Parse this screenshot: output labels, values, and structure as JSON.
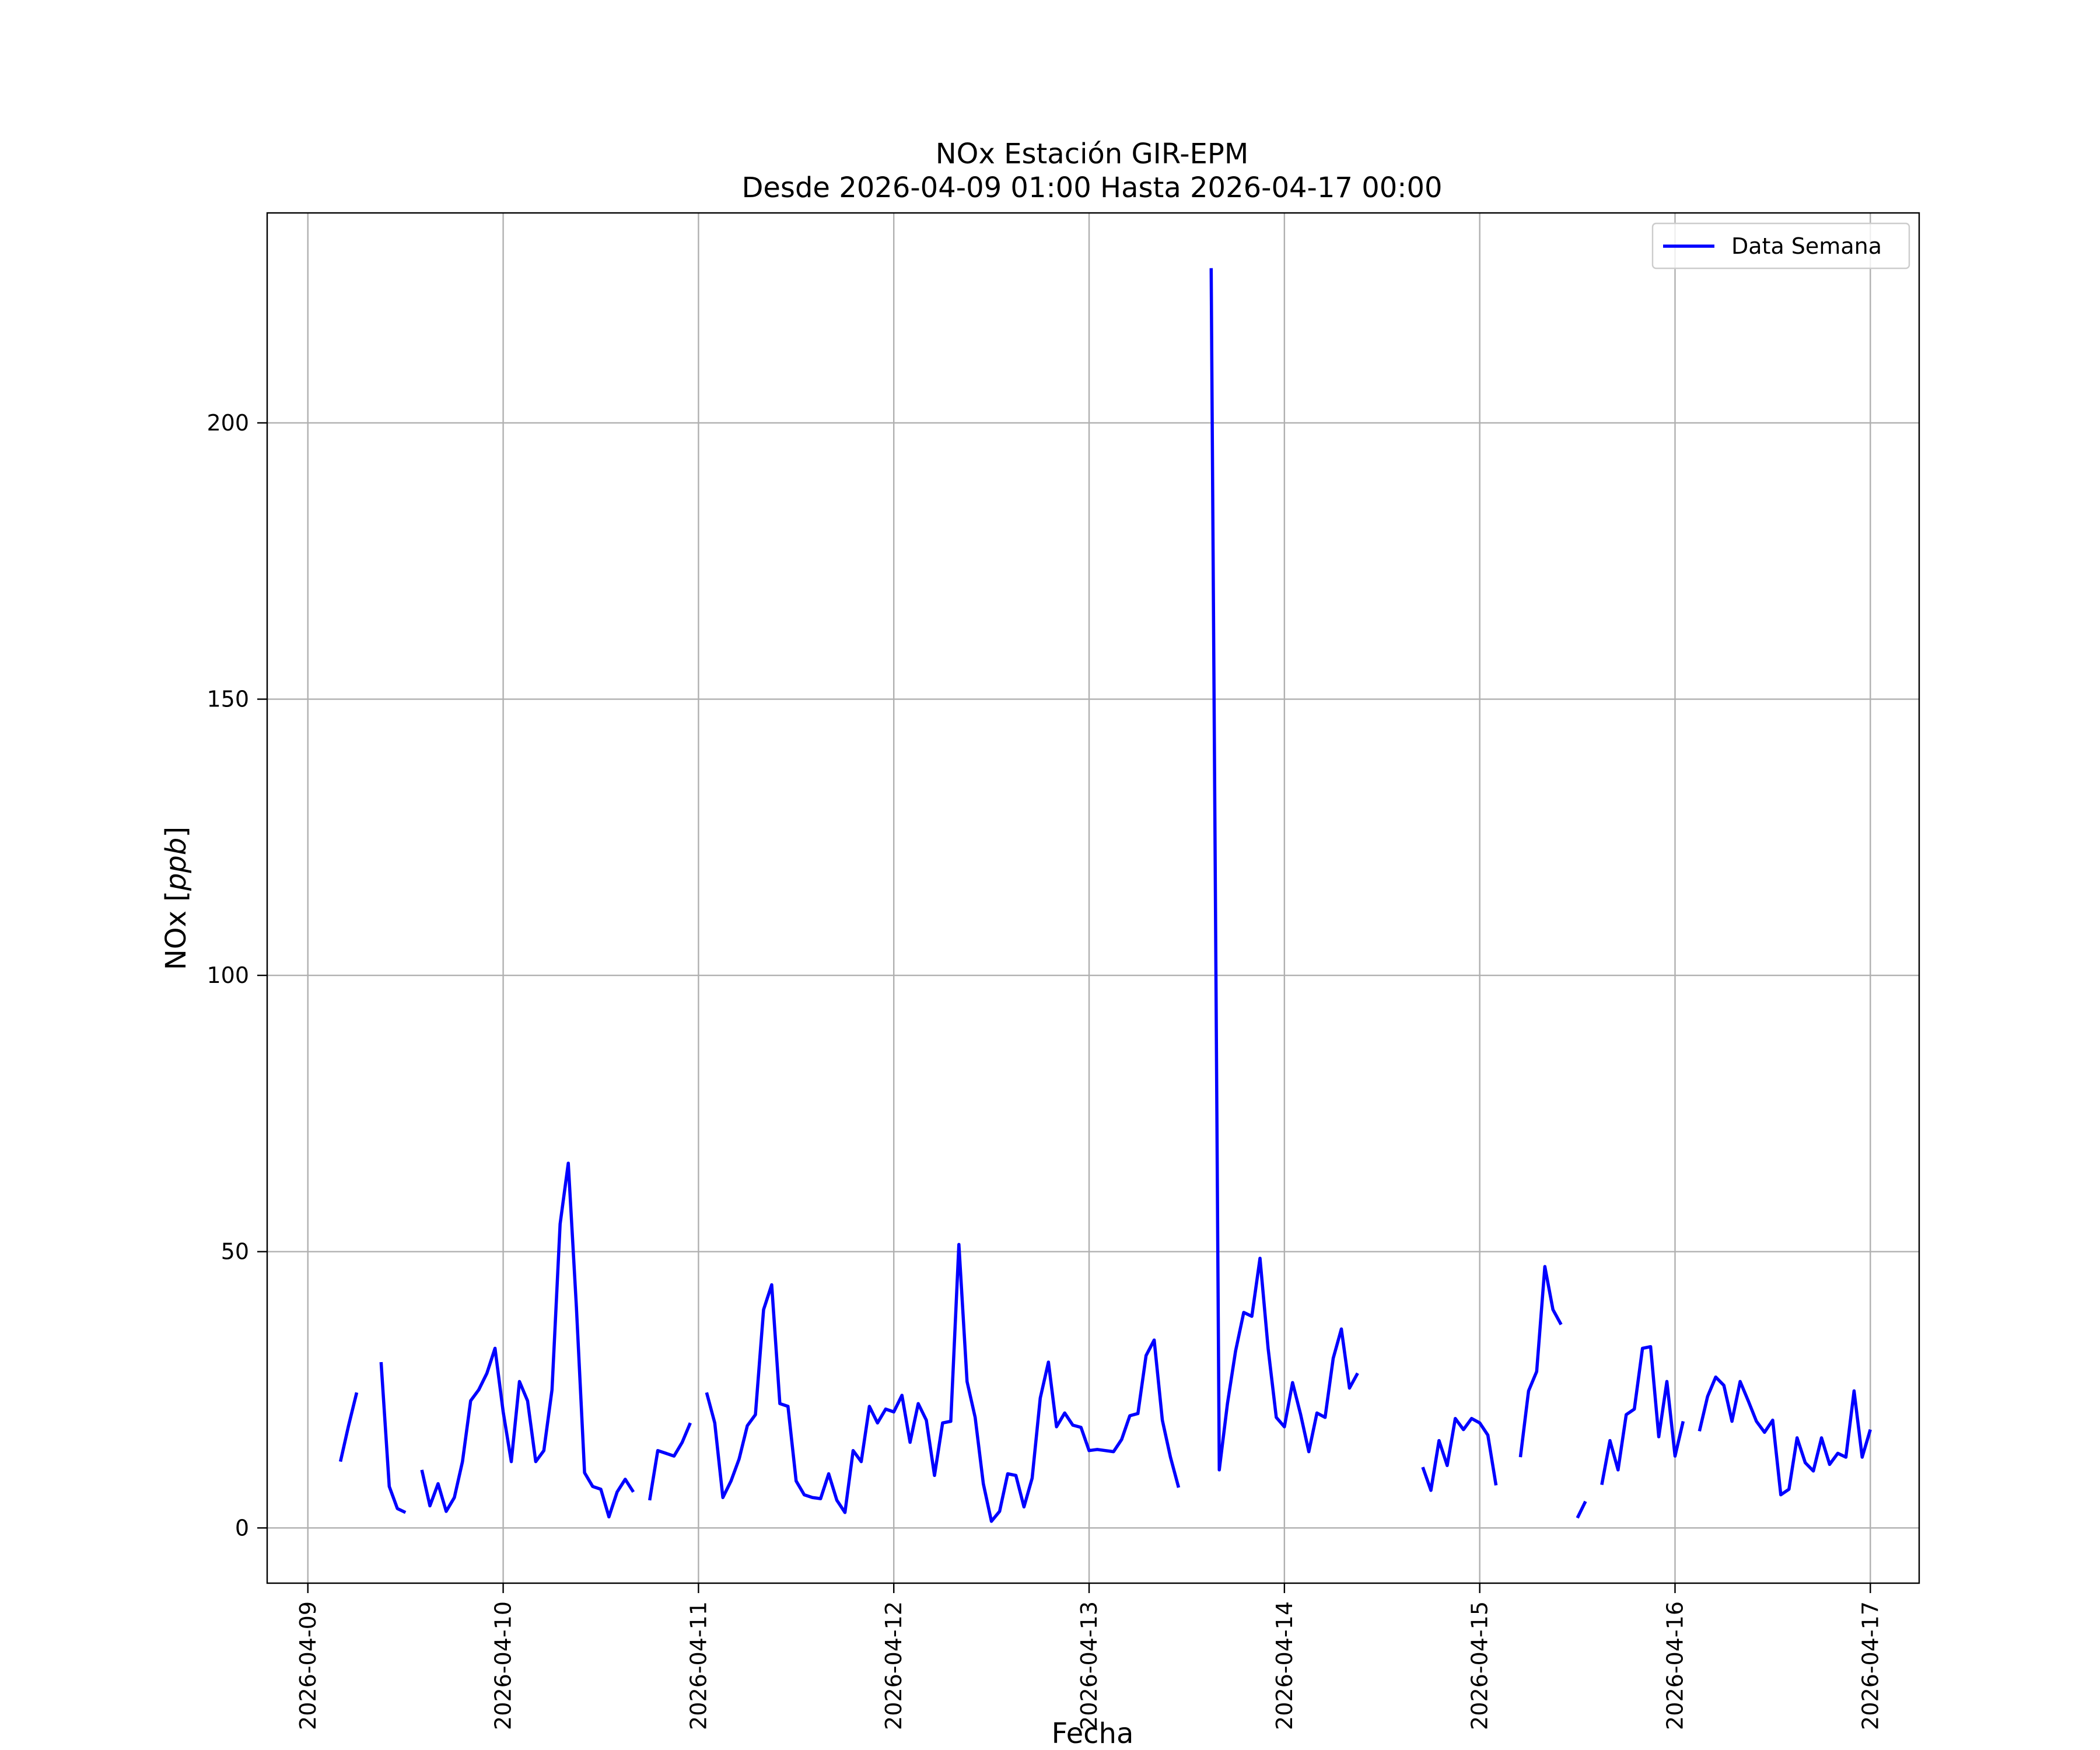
{
  "chart_data": {
    "type": "line",
    "title": "NOx Estación GIR-EPM",
    "subtitle": "Desde 2026-04-09 01:00 Hasta 2026-04-17 00:00",
    "xlabel": "Fecha",
    "ylabel": "NOx [ppb]",
    "ylabel_parts": {
      "name": "NOx",
      "unit": "ppb"
    },
    "xlim": [
      "2026-04-08 19:00",
      "2026-04-17 06:00"
    ],
    "ylim": [
      -10,
      238
    ],
    "x_ticks": [
      "2026-04-09",
      "2026-04-10",
      "2026-04-11",
      "2026-04-12",
      "2026-04-13",
      "2026-04-14",
      "2026-04-15",
      "2026-04-16",
      "2026-04-17"
    ],
    "y_ticks": [
      0,
      50,
      100,
      150,
      200
    ],
    "y_tick_labels": [
      "0",
      "50",
      "100",
      "150",
      "200"
    ],
    "grid": true,
    "legend": {
      "position": "top-right",
      "entries": [
        "Data Semana"
      ]
    },
    "colors": {
      "series": "#0000ff",
      "grid": "#b0b0b0",
      "frame": "#000000"
    },
    "series": [
      {
        "name": "Data Semana",
        "segments": [
          [
            [
              "2026-04-09 04:00",
              12
            ],
            [
              "2026-04-09 05:00",
              18.5
            ],
            [
              "2026-04-09 06:00",
              24.5
            ]
          ],
          [
            [
              "2026-04-09 09:00",
              30
            ],
            [
              "2026-04-09 10:00",
              7.5
            ],
            [
              "2026-04-09 11:00",
              3.5
            ],
            [
              "2026-04-09 12:00",
              2.8
            ]
          ],
          [
            [
              "2026-04-09 14:00",
              10.5
            ],
            [
              "2026-04-09 15:00",
              4
            ],
            [
              "2026-04-09 16:00",
              8
            ],
            [
              "2026-04-09 17:00",
              3
            ],
            [
              "2026-04-09 18:00",
              5.5
            ],
            [
              "2026-04-09 19:00",
              12
            ],
            [
              "2026-04-09 20:00",
              23
            ],
            [
              "2026-04-09 21:00",
              25
            ],
            [
              "2026-04-09 22:00",
              28
            ],
            [
              "2026-04-09 23:00",
              32.5
            ],
            [
              "2026-04-10 00:00",
              21
            ],
            [
              "2026-04-10 01:00",
              12
            ],
            [
              "2026-04-10 02:00",
              26.5
            ],
            [
              "2026-04-10 03:00",
              23
            ],
            [
              "2026-04-10 04:00",
              12
            ],
            [
              "2026-04-10 05:00",
              14
            ],
            [
              "2026-04-10 06:00",
              25
            ],
            [
              "2026-04-10 07:00",
              55
            ],
            [
              "2026-04-10 08:00",
              66
            ],
            [
              "2026-04-10 09:00",
              40
            ],
            [
              "2026-04-10 10:00",
              10
            ],
            [
              "2026-04-10 11:00",
              7.5
            ],
            [
              "2026-04-10 12:00",
              7
            ],
            [
              "2026-04-10 13:00",
              2
            ],
            [
              "2026-04-10 14:00",
              6.5
            ],
            [
              "2026-04-10 15:00",
              8.8
            ],
            [
              "2026-04-10 16:00",
              6.5
            ]
          ],
          [
            [
              "2026-04-10 18:00",
              5
            ],
            [
              "2026-04-10 19:00",
              14
            ],
            [
              "2026-04-10 20:00",
              13.5
            ],
            [
              "2026-04-10 21:00",
              13
            ],
            [
              "2026-04-10 22:00",
              15.5
            ],
            [
              "2026-04-10 23:00",
              19
            ]
          ],
          [
            [
              "2026-04-11 01:00",
              24.5
            ],
            [
              "2026-04-11 02:00",
              19
            ],
            [
              "2026-04-11 03:00",
              5.5
            ],
            [
              "2026-04-11 04:00",
              8.5
            ],
            [
              "2026-04-11 05:00",
              12.5
            ],
            [
              "2026-04-11 06:00",
              18.5
            ],
            [
              "2026-04-11 07:00",
              20.5
            ],
            [
              "2026-04-11 08:00",
              39.5
            ],
            [
              "2026-04-11 09:00",
              44
            ],
            [
              "2026-04-11 10:00",
              22.5
            ],
            [
              "2026-04-11 11:00",
              22
            ],
            [
              "2026-04-11 12:00",
              8.5
            ],
            [
              "2026-04-11 13:00",
              6
            ],
            [
              "2026-04-11 14:00",
              5.5
            ],
            [
              "2026-04-11 15:00",
              5.3
            ],
            [
              "2026-04-11 16:00",
              9.8
            ],
            [
              "2026-04-11 17:00",
              5
            ],
            [
              "2026-04-11 18:00",
              2.8
            ],
            [
              "2026-04-11 19:00",
              14
            ],
            [
              "2026-04-11 20:00",
              12
            ],
            [
              "2026-04-11 21:00",
              22
            ],
            [
              "2026-04-11 22:00",
              19
            ],
            [
              "2026-04-11 23:00",
              21.5
            ],
            [
              "2026-04-12 00:00",
              21
            ],
            [
              "2026-04-12 01:00",
              24
            ],
            [
              "2026-04-12 02:00",
              15.5
            ],
            [
              "2026-04-12 03:00",
              22.5
            ],
            [
              "2026-04-12 04:00",
              19.5
            ],
            [
              "2026-04-12 05:00",
              9.5
            ],
            [
              "2026-04-12 06:00",
              19
            ],
            [
              "2026-04-12 07:00",
              19.3
            ],
            [
              "2026-04-12 08:00",
              51.3
            ],
            [
              "2026-04-12 09:00",
              26.5
            ],
            [
              "2026-04-12 10:00",
              20
            ],
            [
              "2026-04-12 11:00",
              8
            ],
            [
              "2026-04-12 12:00",
              1.2
            ],
            [
              "2026-04-12 13:00",
              3
            ],
            [
              "2026-04-12 14:00",
              9.8
            ],
            [
              "2026-04-12 15:00",
              9.5
            ],
            [
              "2026-04-12 16:00",
              3.8
            ],
            [
              "2026-04-12 17:00",
              9
            ],
            [
              "2026-04-12 18:00",
              23.5
            ],
            [
              "2026-04-12 19:00",
              30
            ],
            [
              "2026-04-12 20:00",
              18.3
            ],
            [
              "2026-04-12 21:00",
              20.8
            ],
            [
              "2026-04-12 22:00",
              18.6
            ],
            [
              "2026-04-12 23:00",
              18.2
            ],
            [
              "2026-04-13 00:00",
              14
            ],
            [
              "2026-04-13 01:00",
              14.2
            ],
            [
              "2026-04-13 02:00",
              14
            ],
            [
              "2026-04-13 03:00",
              13.8
            ],
            [
              "2026-04-13 04:00",
              16
            ],
            [
              "2026-04-13 05:00",
              20.3
            ],
            [
              "2026-04-13 06:00",
              20.7
            ],
            [
              "2026-04-13 07:00",
              31.2
            ],
            [
              "2026-04-13 08:00",
              34
            ],
            [
              "2026-04-13 09:00",
              19.5
            ],
            [
              "2026-04-13 10:00",
              12.8
            ],
            [
              "2026-04-13 11:00",
              7.3
            ]
          ],
          [
            [
              "2026-04-13 15:00",
              228
            ],
            [
              "2026-04-13 16:00",
              10.5
            ],
            [
              "2026-04-13 17:00",
              22.5
            ],
            [
              "2026-04-13 18:00",
              32
            ],
            [
              "2026-04-13 19:00",
              39
            ],
            [
              "2026-04-13 20:00",
              38.3
            ],
            [
              "2026-04-13 21:00",
              48.8
            ],
            [
              "2026-04-13 22:00",
              32.5
            ],
            [
              "2026-04-13 23:00",
              20
            ],
            [
              "2026-04-14 00:00",
              18.3
            ],
            [
              "2026-04-14 01:00",
              26.3
            ],
            [
              "2026-04-14 02:00",
              20.5
            ],
            [
              "2026-04-14 03:00",
              13.8
            ],
            [
              "2026-04-14 04:00",
              20.8
            ],
            [
              "2026-04-14 05:00",
              20
            ],
            [
              "2026-04-14 06:00",
              30.7
            ],
            [
              "2026-04-14 07:00",
              36
            ],
            [
              "2026-04-14 08:00",
              25.3
            ],
            [
              "2026-04-14 09:00",
              28
            ]
          ],
          [
            [
              "2026-04-14 17:00",
              11
            ],
            [
              "2026-04-14 18:00",
              6.8
            ],
            [
              "2026-04-14 19:00",
              15.8
            ],
            [
              "2026-04-14 20:00",
              11.3
            ],
            [
              "2026-04-14 21:00",
              19.8
            ],
            [
              "2026-04-14 22:00",
              17.8
            ],
            [
              "2026-04-14 23:00",
              19.8
            ],
            [
              "2026-04-15 00:00",
              19
            ],
            [
              "2026-04-15 01:00",
              16.8
            ],
            [
              "2026-04-15 02:00",
              7.7
            ]
          ],
          [
            [
              "2026-04-15 05:00",
              12.8
            ],
            [
              "2026-04-15 06:00",
              24.8
            ],
            [
              "2026-04-15 07:00",
              28.3
            ],
            [
              "2026-04-15 08:00",
              47.3
            ],
            [
              "2026-04-15 09:00",
              39.5
            ],
            [
              "2026-04-15 10:00",
              36.8
            ]
          ],
          [
            [
              "2026-04-15 12:00",
              1.8
            ],
            [
              "2026-04-15 13:00",
              4.8
            ]
          ],
          [
            [
              "2026-04-15 15:00",
              7.8
            ],
            [
              "2026-04-15 16:00",
              15.8
            ],
            [
              "2026-04-15 17:00",
              10.5
            ],
            [
              "2026-04-15 18:00",
              20.5
            ],
            [
              "2026-04-15 19:00",
              21.5
            ],
            [
              "2026-04-15 20:00",
              32.5
            ],
            [
              "2026-04-15 21:00",
              32.8
            ],
            [
              "2026-04-15 22:00",
              16.5
            ],
            [
              "2026-04-15 23:00",
              26.5
            ],
            [
              "2026-04-16 00:00",
              13
            ],
            [
              "2026-04-16 01:00",
              19.3
            ]
          ],
          [
            [
              "2026-04-16 03:00",
              17.5
            ],
            [
              "2026-04-16 04:00",
              23.8
            ],
            [
              "2026-04-16 05:00",
              27.3
            ],
            [
              "2026-04-16 06:00",
              25.8
            ],
            [
              "2026-04-16 07:00",
              19.3
            ],
            [
              "2026-04-16 08:00",
              26.5
            ],
            [
              "2026-04-16 09:00",
              23
            ],
            [
              "2026-04-16 10:00",
              19.3
            ],
            [
              "2026-04-16 11:00",
              17.3
            ],
            [
              "2026-04-16 12:00",
              19.5
            ],
            [
              "2026-04-16 13:00",
              6
            ],
            [
              "2026-04-16 14:00",
              7
            ],
            [
              "2026-04-16 15:00",
              16.3
            ],
            [
              "2026-04-16 16:00",
              11.8
            ],
            [
              "2026-04-16 17:00",
              10.3
            ],
            [
              "2026-04-16 18:00",
              16.3
            ],
            [
              "2026-04-16 19:00",
              11.5
            ],
            [
              "2026-04-16 20:00",
              13.5
            ],
            [
              "2026-04-16 21:00",
              12.8
            ],
            [
              "2026-04-16 22:00",
              24.8
            ],
            [
              "2026-04-16 23:00",
              12.8
            ],
            [
              "2026-04-17 00:00",
              17.8
            ]
          ]
        ]
      }
    ]
  }
}
